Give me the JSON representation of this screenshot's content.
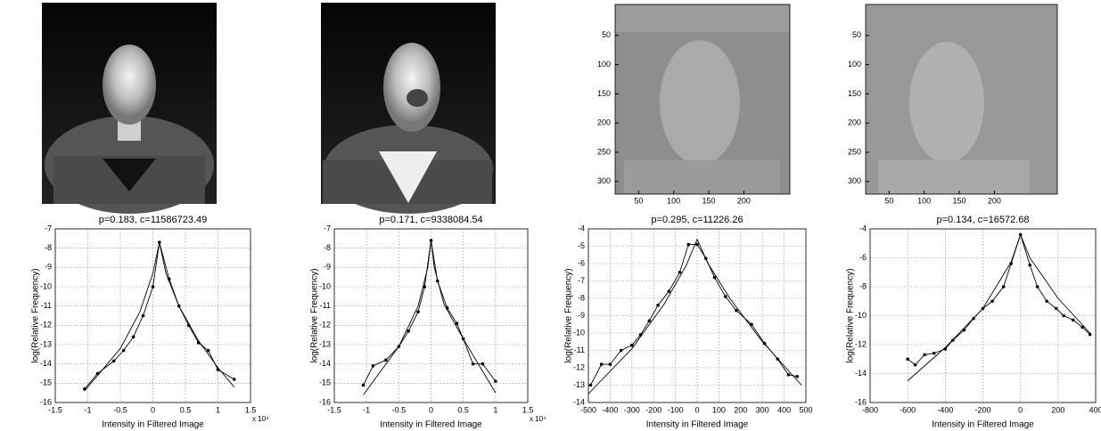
{
  "chart_data": [
    {
      "type": "line",
      "title": "p=0.183, c=11586723.49",
      "x_label": "Intensity in Filtered Image",
      "y_label": "log(Relative Frequency)",
      "x_scale_label": "x 10⁴",
      "xlim": [
        -1.5,
        1.5
      ],
      "xticks": [
        -1.5,
        -1,
        -0.5,
        0,
        0.5,
        1,
        1.5
      ],
      "ylim": [
        -16,
        -7
      ],
      "yticks": [
        -16,
        -15,
        -14,
        -13,
        -12,
        -11,
        -10,
        -9,
        -8,
        -7
      ],
      "grid": true,
      "series": [
        {
          "color": "#000000",
          "marker": true,
          "x": [
            -1.05,
            -0.85,
            -0.6,
            -0.45,
            -0.3,
            -0.15,
            0,
            0.1,
            0.25,
            0.4,
            0.55,
            0.7,
            0.85,
            1.0,
            1.25
          ],
          "values": [
            -15.3,
            -14.5,
            -13.85,
            -13.3,
            -12.6,
            -11.5,
            -10,
            -7.7,
            -9.6,
            -11,
            -12,
            -12.9,
            -13.3,
            -14.3,
            -14.8
          ]
        },
        {
          "color": "#000000",
          "marker": false,
          "x": [
            -1.05,
            -0.5,
            -0.2,
            0,
            0.1,
            0.2,
            0.4,
            0.7,
            1.0,
            1.25
          ],
          "values": [
            -15.4,
            -13.2,
            -11.3,
            -9.3,
            -7.7,
            -9.3,
            -11,
            -12.8,
            -14.2,
            -15.2
          ]
        }
      ]
    },
    {
      "type": "line",
      "title": "p=0.171, c=9338084.54",
      "x_label": "Intensity in Filtered Image",
      "y_label": "log(Relative Frequency)",
      "x_scale_label": "x 10⁴",
      "xlim": [
        -1.5,
        1.5
      ],
      "xticks": [
        -1.5,
        -1,
        -0.5,
        0,
        0.5,
        1,
        1.5
      ],
      "ylim": [
        -16,
        -7
      ],
      "yticks": [
        -16,
        -15,
        -14,
        -13,
        -12,
        -11,
        -10,
        -9,
        -8,
        -7
      ],
      "grid": true,
      "series": [
        {
          "color": "#000000",
          "marker": true,
          "x": [
            -1.05,
            -0.9,
            -0.7,
            -0.5,
            -0.35,
            -0.2,
            -0.1,
            0,
            0.1,
            0.25,
            0.4,
            0.5,
            0.65,
            0.8,
            1.0
          ],
          "values": [
            -15.1,
            -14.1,
            -13.8,
            -13.1,
            -12.3,
            -11.3,
            -10,
            -7.6,
            -9.7,
            -11.1,
            -11.9,
            -12.7,
            -14,
            -14,
            -14.9
          ]
        },
        {
          "color": "#000000",
          "marker": false,
          "x": [
            -1.05,
            -0.5,
            -0.2,
            -0.05,
            0,
            0.05,
            0.2,
            0.5,
            1.0
          ],
          "values": [
            -15.6,
            -13.1,
            -11,
            -9,
            -7.6,
            -9,
            -10.9,
            -12.7,
            -15.5
          ]
        }
      ]
    },
    {
      "type": "line",
      "title": "p=0.295, c=11226.26",
      "x_label": "Intensity in Filtered Image",
      "y_label": "log(Relative Frequency)",
      "xlim": [
        -500,
        500
      ],
      "xticks": [
        -500,
        -400,
        -300,
        -200,
        -100,
        0,
        100,
        200,
        300,
        400,
        500
      ],
      "ylim": [
        -14,
        -4
      ],
      "yticks": [
        -14,
        -13,
        -12,
        -11,
        -10,
        -9,
        -8,
        -7,
        -6,
        -5,
        -4
      ],
      "grid": true,
      "series": [
        {
          "color": "#000000",
          "marker": true,
          "x": [
            -490,
            -440,
            -400,
            -350,
            -300,
            -260,
            -220,
            -180,
            -130,
            -80,
            -40,
            0,
            40,
            80,
            130,
            180,
            250,
            310,
            370,
            420,
            460
          ],
          "values": [
            -13,
            -11.8,
            -11.8,
            -11,
            -10.7,
            -10.1,
            -9.3,
            -8.4,
            -7.6,
            -6.5,
            -4.9,
            -4.9,
            -5.7,
            -6.8,
            -7.9,
            -8.7,
            -9.5,
            -10.6,
            -11.5,
            -12.4,
            -12.5
          ]
        },
        {
          "color": "#000000",
          "marker": false,
          "x": [
            -500,
            -300,
            -150,
            -50,
            0,
            50,
            150,
            300,
            480
          ],
          "values": [
            -13.5,
            -10.9,
            -8.3,
            -6.1,
            -4.6,
            -6,
            -8,
            -10.5,
            -13
          ]
        }
      ]
    },
    {
      "type": "line",
      "title": "p=0.134, c=16572.68",
      "x_label": "Intensity in Filtered Image",
      "y_label": "log(Relative Frequency)",
      "xlim": [
        -800,
        400
      ],
      "xticks": [
        -800,
        -600,
        -400,
        -200,
        0,
        200,
        400
      ],
      "ylim": [
        -16,
        -4
      ],
      "yticks": [
        -16,
        -14,
        -12,
        -10,
        -8,
        -6,
        -4
      ],
      "grid": true,
      "series": [
        {
          "color": "#000000",
          "marker": true,
          "x": [
            -600,
            -560,
            -510,
            -460,
            -400,
            -360,
            -300,
            -250,
            -200,
            -150,
            -90,
            -50,
            0,
            50,
            90,
            140,
            190,
            230,
            280,
            330,
            370
          ],
          "values": [
            -13,
            -13.4,
            -12.7,
            -12.6,
            -12.3,
            -11.7,
            -11,
            -10.2,
            -9.5,
            -9,
            -8,
            -6.4,
            -4.4,
            -6.5,
            -8,
            -9,
            -9.5,
            -10,
            -10.3,
            -10.8,
            -11.3
          ]
        },
        {
          "color": "#000000",
          "marker": false,
          "x": [
            -600,
            -400,
            -200,
            -50,
            0,
            50,
            200,
            370
          ],
          "values": [
            -14.5,
            -12.2,
            -9.5,
            -6.3,
            -4.4,
            -6,
            -8.8,
            -11.2
          ]
        }
      ]
    }
  ],
  "image_axes": [
    {
      "xticks": [
        50,
        100,
        150,
        200
      ],
      "yticks": [
        50,
        100,
        150,
        200,
        250,
        300
      ]
    },
    {
      "xticks": [
        50,
        100,
        150,
        200
      ],
      "yticks": [
        50,
        100,
        150,
        200,
        250,
        300
      ]
    }
  ]
}
